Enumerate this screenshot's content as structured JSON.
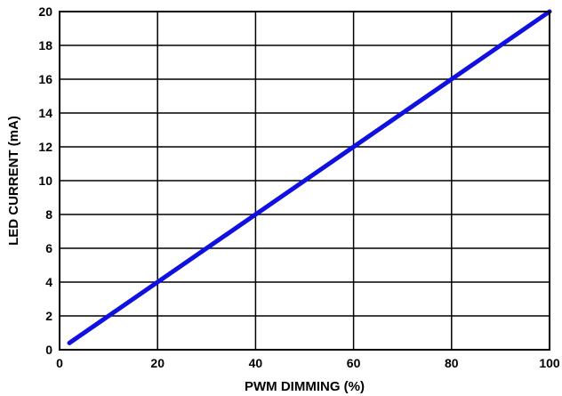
{
  "chart_data": {
    "type": "line",
    "title": "",
    "xlabel": "PWM DIMMING (%)",
    "ylabel": "LED CURRENT (mA)",
    "xlim": [
      0,
      100
    ],
    "ylim": [
      0,
      20
    ],
    "x_ticks": [
      "0",
      "20",
      "40",
      "60",
      "80",
      "100"
    ],
    "y_ticks": [
      "0",
      "2",
      "4",
      "6",
      "8",
      "10",
      "12",
      "14",
      "16",
      "18",
      "20"
    ],
    "grid": true,
    "legend": "none",
    "series": [
      {
        "color": "#1010e0",
        "x": [
          2,
          100
        ],
        "y": [
          0.4,
          20
        ]
      }
    ]
  }
}
